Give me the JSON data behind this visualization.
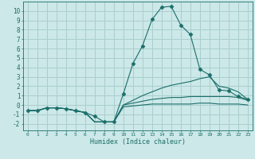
{
  "xlabel": "Humidex (Indice chaleur)",
  "background_color": "#cce8e8",
  "grid_color": "#aacece",
  "line_color": "#1a6e6a",
  "xlim": [
    -0.5,
    23.5
  ],
  "ylim": [
    -2.7,
    11.0
  ],
  "xticks": [
    0,
    1,
    2,
    3,
    4,
    5,
    6,
    7,
    8,
    9,
    10,
    11,
    12,
    13,
    14,
    15,
    16,
    17,
    18,
    19,
    20,
    21,
    22,
    23
  ],
  "yticks": [
    -2,
    -1,
    0,
    1,
    2,
    3,
    4,
    5,
    6,
    7,
    8,
    9,
    10
  ],
  "series": [
    {
      "x": [
        0,
        1,
        2,
        3,
        4,
        5,
        6,
        7,
        8,
        9,
        10,
        11,
        12,
        13,
        14,
        15,
        16,
        17,
        18,
        19,
        20,
        21,
        22,
        23
      ],
      "y": [
        -0.6,
        -0.6,
        -0.3,
        -0.3,
        -0.4,
        -0.6,
        -0.8,
        -1.2,
        -1.8,
        -1.8,
        1.2,
        4.4,
        6.3,
        9.1,
        10.4,
        10.5,
        8.5,
        7.5,
        3.8,
        3.2,
        1.6,
        1.5,
        0.9,
        0.6
      ],
      "marker": true
    },
    {
      "x": [
        0,
        1,
        2,
        3,
        4,
        5,
        6,
        7,
        8,
        9,
        10,
        11,
        12,
        13,
        14,
        15,
        16,
        17,
        18,
        19,
        20,
        21,
        22,
        23
      ],
      "y": [
        -0.6,
        -0.6,
        -0.3,
        -0.3,
        -0.4,
        -0.6,
        -0.8,
        -1.8,
        -1.8,
        -1.8,
        0.0,
        0.5,
        1.0,
        1.4,
        1.8,
        2.1,
        2.3,
        2.5,
        2.8,
        3.0,
        2.0,
        1.8,
        1.4,
        0.6
      ],
      "marker": false
    },
    {
      "x": [
        0,
        1,
        2,
        3,
        4,
        5,
        6,
        7,
        8,
        9,
        10,
        11,
        12,
        13,
        14,
        15,
        16,
        17,
        18,
        19,
        20,
        21,
        22,
        23
      ],
      "y": [
        -0.6,
        -0.6,
        -0.3,
        -0.3,
        -0.4,
        -0.6,
        -0.8,
        -1.8,
        -1.8,
        -1.8,
        0.0,
        0.2,
        0.4,
        0.6,
        0.7,
        0.8,
        0.8,
        0.9,
        0.9,
        0.9,
        0.9,
        0.9,
        0.8,
        0.5
      ],
      "marker": false
    },
    {
      "x": [
        0,
        1,
        2,
        3,
        4,
        5,
        6,
        7,
        8,
        9,
        10,
        11,
        12,
        13,
        14,
        15,
        16,
        17,
        18,
        19,
        20,
        21,
        22,
        23
      ],
      "y": [
        -0.6,
        -0.6,
        -0.3,
        -0.3,
        -0.4,
        -0.6,
        -0.8,
        -1.8,
        -1.8,
        -1.8,
        -0.2,
        -0.1,
        0.0,
        0.1,
        0.1,
        0.1,
        0.1,
        0.1,
        0.2,
        0.2,
        0.1,
        0.1,
        0.1,
        0.0
      ],
      "marker": false
    }
  ]
}
